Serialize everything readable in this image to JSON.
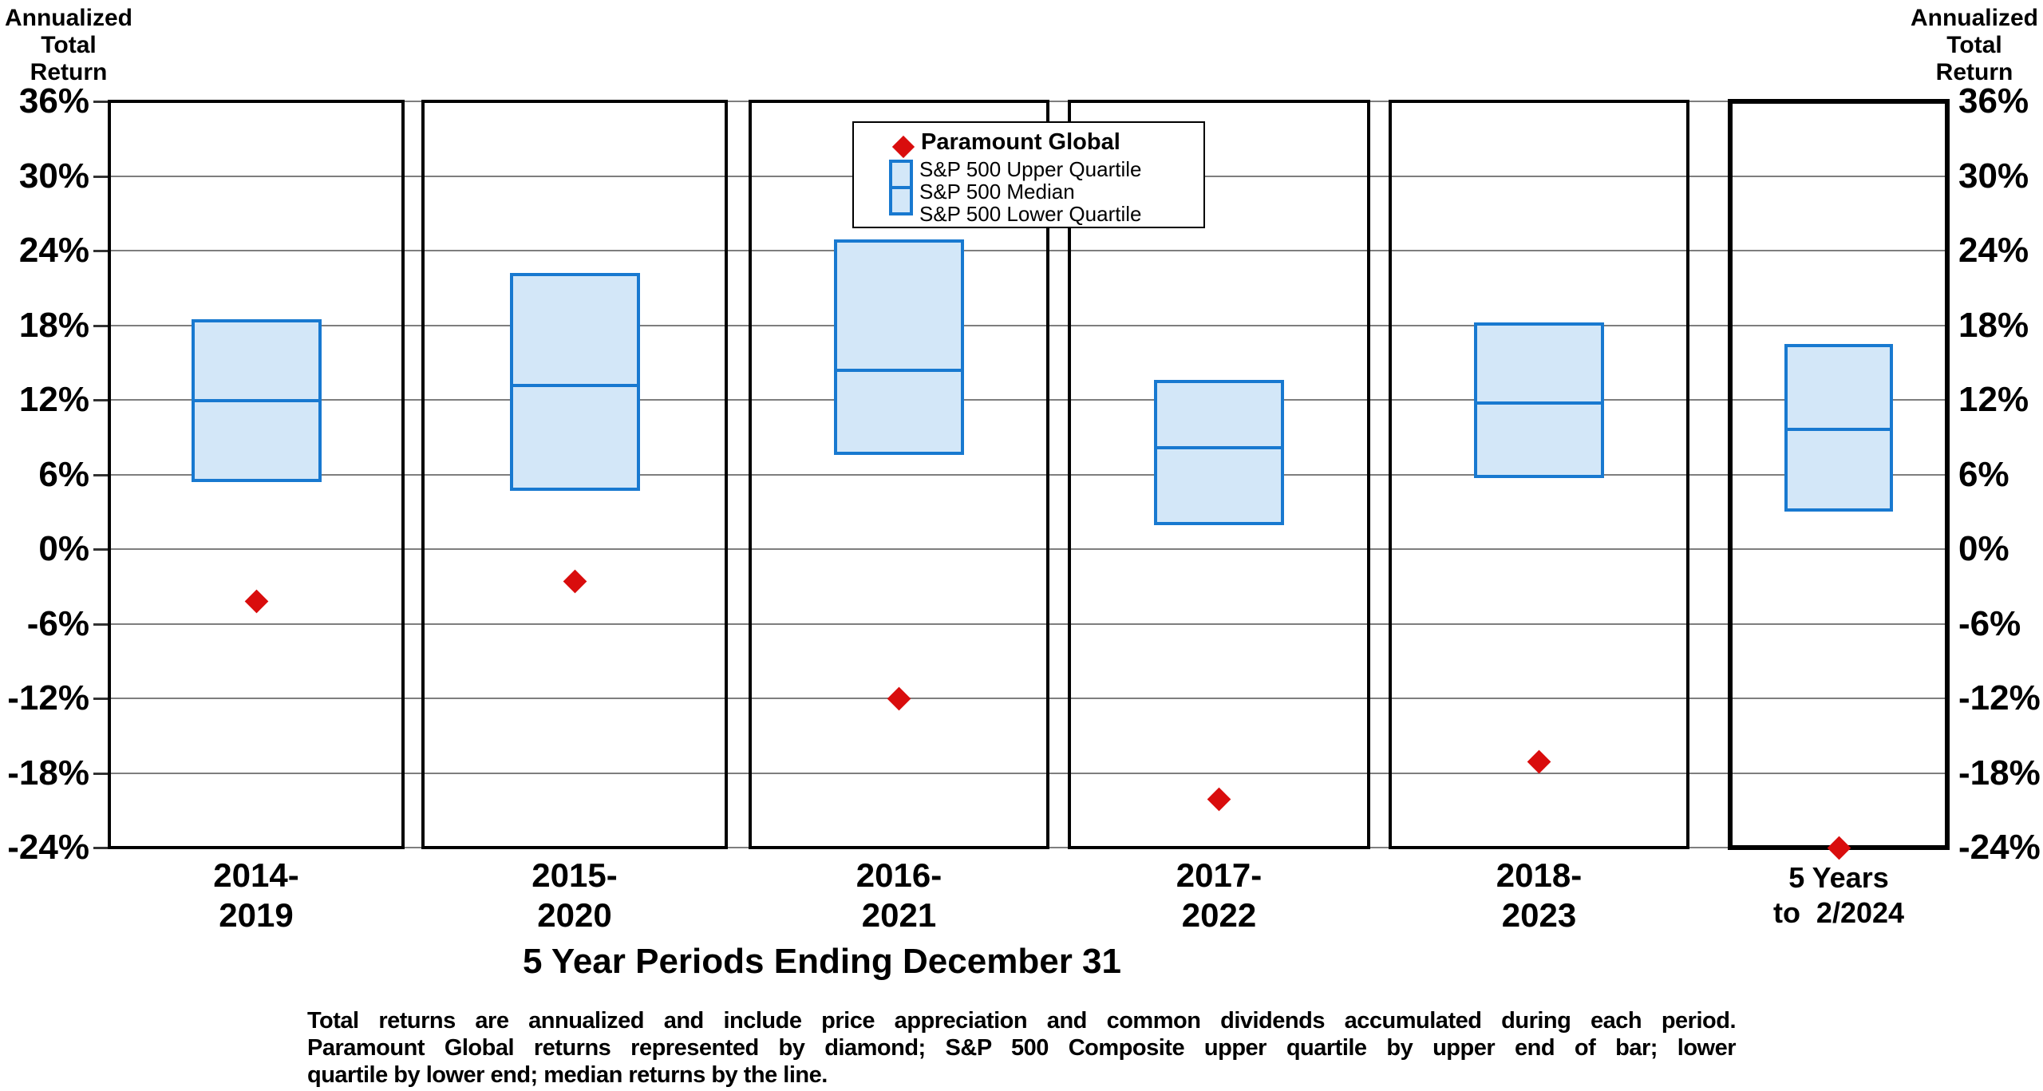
{
  "axis_title_left": "Annualized\nTotal\nReturn",
  "axis_title_right": "Annualized\nTotal\nReturn",
  "x_axis_title": "5 Year Periods Ending December 31",
  "legend": {
    "paramount_label": "Paramount Global",
    "upper_label": "S&P 500 Upper Quartile",
    "median_label": "S&P 500 Median",
    "lower_label": "S&P 500 Lower Quartile"
  },
  "footnote": {
    "lines": [
      "Total returns are annualized and include price appreciation and common dividends accumulated during each period.",
      "Paramount Global returns represented by diamond; S&P 500 Composite upper quartile by upper end of bar; lower",
      "quartile by lower end; median returns by the line."
    ]
  },
  "colors": {
    "box_fill": "#D3E7F8",
    "box_border": "#1879D0",
    "median_line": "#1879D0",
    "diamond_red": "#D90D0D",
    "gridline": "#7e7e7e",
    "panel_border": "#000000"
  },
  "chart_data": {
    "type": "bar",
    "subtype": "quartile-range-bars-with-scatter-diamonds",
    "title": "",
    "xlabel": "5 Year Periods Ending December 31",
    "ylabel": "Annualized Total Return",
    "categories": [
      [
        "2014-",
        "2019"
      ],
      [
        "2015-",
        "2020"
      ],
      [
        "2016-",
        "2021"
      ],
      [
        "2017-",
        "2022"
      ],
      [
        "2018-",
        "2023"
      ],
      [
        "5 Years",
        "to  2/2024"
      ]
    ],
    "series": [
      {
        "name": "S&P 500 Upper Quartile",
        "role": "bar-top",
        "values": [
          18.5,
          22.2,
          24.9,
          13.6,
          18.2,
          16.5
        ]
      },
      {
        "name": "S&P 500 Median",
        "role": "bar-median-line",
        "values": [
          12.2,
          13.4,
          14.6,
          8.4,
          12.0,
          9.9
        ]
      },
      {
        "name": "S&P 500 Lower Quartile",
        "role": "bar-bottom",
        "values": [
          5.4,
          4.7,
          7.6,
          1.9,
          5.7,
          3.0
        ]
      },
      {
        "name": "Paramount Global",
        "role": "scatter",
        "marker": "diamond",
        "values": [
          -4.2,
          -2.6,
          -12.0,
          -20.1,
          -17.1,
          -24.0
        ]
      }
    ],
    "ylim": [
      -24,
      36
    ],
    "ytick_values": [
      36,
      30,
      24,
      18,
      12,
      6,
      0,
      -6,
      -12,
      -18,
      -24
    ],
    "ytick_labels": [
      "36%",
      "30%",
      "24%",
      "18%",
      "12%",
      "6%",
      "0%",
      "-6%",
      "-12%",
      "-18%",
      "-24%"
    ],
    "grid": true,
    "legend_position": "top-center",
    "highlight_last_category": true
  }
}
